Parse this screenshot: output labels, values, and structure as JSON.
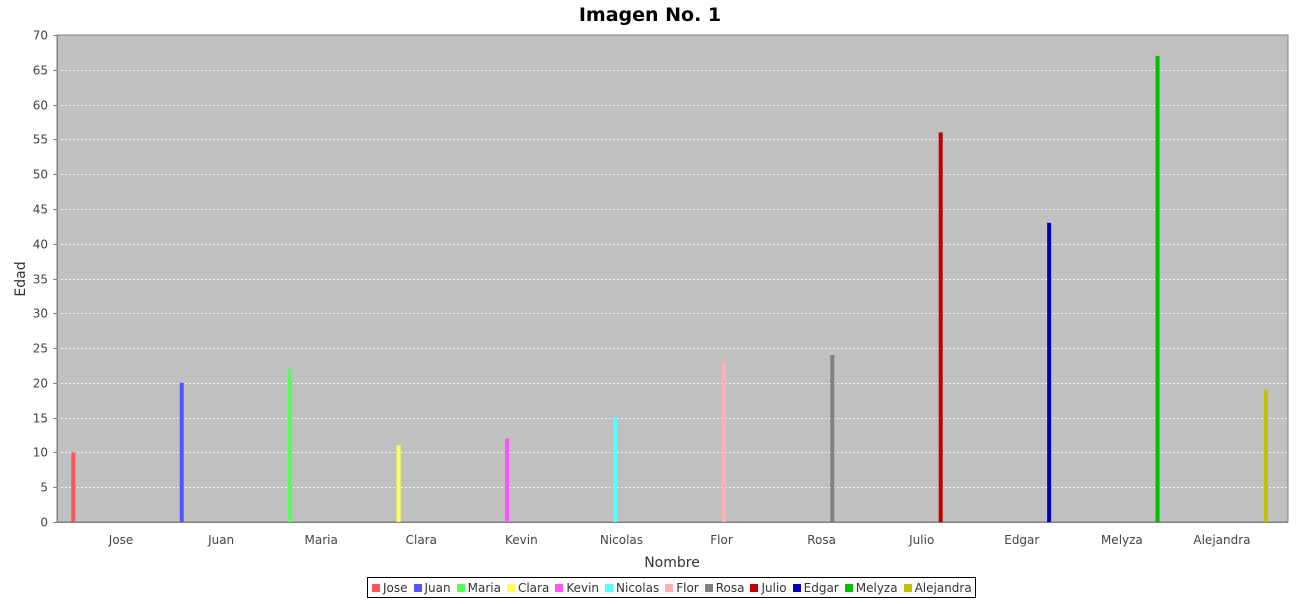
{
  "chart_data": {
    "type": "bar",
    "title": "Imagen No. 1",
    "xlabel": "Nombre",
    "ylabel": "Edad",
    "ylim": [
      0,
      70
    ],
    "y_ticks": [
      0,
      5,
      10,
      15,
      20,
      25,
      30,
      35,
      40,
      45,
      50,
      55,
      60,
      65,
      70
    ],
    "grid": true,
    "legend_position": "bottom",
    "categories": [
      "Jose",
      "Juan",
      "Maria",
      "Clara",
      "Kevin",
      "Nicolas",
      "Flor",
      "Rosa",
      "Julio",
      "Edgar",
      "Melyza",
      "Alejandra"
    ],
    "series": [
      {
        "name": "Jose",
        "color": "#ff5555",
        "values": [
          10,
          0,
          0,
          0,
          0,
          0,
          0,
          0,
          0,
          0,
          0,
          0
        ]
      },
      {
        "name": "Juan",
        "color": "#5555ff",
        "values": [
          0,
          20,
          0,
          0,
          0,
          0,
          0,
          0,
          0,
          0,
          0,
          0
        ]
      },
      {
        "name": "Maria",
        "color": "#55ff55",
        "values": [
          0,
          0,
          22,
          0,
          0,
          0,
          0,
          0,
          0,
          0,
          0,
          0
        ]
      },
      {
        "name": "Clara",
        "color": "#ffff55",
        "values": [
          0,
          0,
          0,
          11,
          0,
          0,
          0,
          0,
          0,
          0,
          0,
          0
        ]
      },
      {
        "name": "Kevin",
        "color": "#ff55ff",
        "values": [
          0,
          0,
          0,
          0,
          12,
          0,
          0,
          0,
          0,
          0,
          0,
          0
        ]
      },
      {
        "name": "Nicolas",
        "color": "#55ffff",
        "values": [
          0,
          0,
          0,
          0,
          0,
          15,
          0,
          0,
          0,
          0,
          0,
          0
        ]
      },
      {
        "name": "Flor",
        "color": "#ffafaf",
        "values": [
          0,
          0,
          0,
          0,
          0,
          0,
          23,
          0,
          0,
          0,
          0,
          0
        ]
      },
      {
        "name": "Rosa",
        "color": "#808080",
        "values": [
          0,
          0,
          0,
          0,
          0,
          0,
          0,
          24,
          0,
          0,
          0,
          0
        ]
      },
      {
        "name": "Julio",
        "color": "#c00000",
        "values": [
          0,
          0,
          0,
          0,
          0,
          0,
          0,
          0,
          56,
          0,
          0,
          0
        ]
      },
      {
        "name": "Edgar",
        "color": "#0000c0",
        "values": [
          0,
          0,
          0,
          0,
          0,
          0,
          0,
          0,
          0,
          43,
          0,
          0
        ]
      },
      {
        "name": "Melyza",
        "color": "#00c000",
        "values": [
          0,
          0,
          0,
          0,
          0,
          0,
          0,
          0,
          0,
          0,
          67,
          0
        ]
      },
      {
        "name": "Alejandra",
        "color": "#c0c000",
        "values": [
          0,
          0,
          0,
          0,
          0,
          0,
          0,
          0,
          0,
          0,
          0,
          19
        ]
      }
    ]
  },
  "colors": {
    "plot_background": "#c0c0c0",
    "gridline": "#ffffff"
  }
}
